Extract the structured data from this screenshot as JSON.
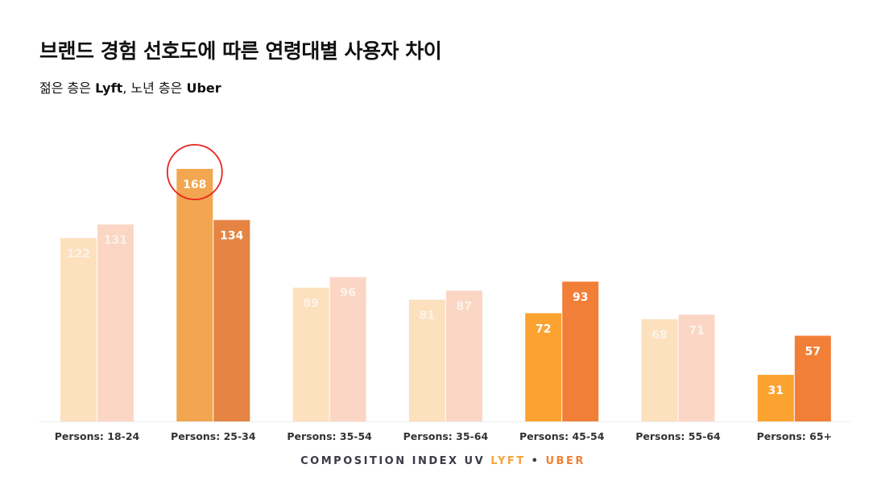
{
  "title": "브랜드 경험 선호도에 따른 연령대별 사용자 차이",
  "subtitle": {
    "prefix": "젊은 층은 ",
    "brand_young": "Lyft",
    "middle": ", 노년 층은 ",
    "brand_old": "Uber"
  },
  "legend": {
    "label": "COMPOSITION INDEX UV",
    "lyft": "LYFT",
    "separator": "•",
    "uber": "UBER"
  },
  "chart_data": {
    "type": "bar",
    "categories": [
      "Persons: 18-24",
      "Persons: 25-34",
      "Persons: 35-54",
      "Persons: 35-64",
      "Persons: 45-54",
      "Persons: 55-64",
      "Persons: 65+"
    ],
    "series": [
      {
        "name": "LYFT",
        "values": [
          122,
          168,
          89,
          81,
          72,
          68,
          31
        ]
      },
      {
        "name": "UBER",
        "values": [
          131,
          134,
          96,
          87,
          93,
          71,
          57
        ]
      }
    ],
    "highlighted_categories": [
      1,
      4,
      6
    ],
    "circled": {
      "series": 0,
      "category": 1
    },
    "colors": {
      "lyft_highlight": "#f2a64f",
      "uber_highlight": "#e58443",
      "lyft_bright": "#fca230",
      "uber_bright": "#f27f38",
      "lyft_faded": "#fde0bd",
      "uber_faded": "#fcd6c4",
      "faded_label": "#fbf3ea",
      "circle": "#e8231d"
    },
    "ylim": [
      0,
      180
    ],
    "grid": false
  }
}
